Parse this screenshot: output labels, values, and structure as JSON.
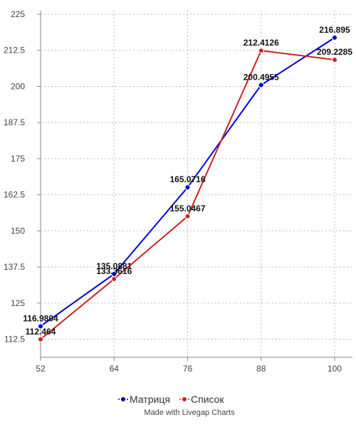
{
  "chart_data": {
    "type": "line",
    "x": [
      52,
      64,
      76,
      88,
      100
    ],
    "x_ticks": [
      "52",
      "64",
      "76",
      "88",
      "100"
    ],
    "y_ticks": [
      "112.5",
      "125",
      "137.5",
      "150",
      "162.5",
      "175",
      "187.5",
      "200",
      "212.5",
      "225"
    ],
    "ylim": [
      106.25,
      225
    ],
    "xlim": [
      52,
      100
    ],
    "grid": "horizontal and vertical dotted",
    "legend_position": "bottom",
    "series": [
      {
        "name": "Матриця",
        "color": "#0000dd",
        "values": [
          116.9804,
          135.0881,
          165.0716,
          200.4955,
          216.895
        ],
        "labels": [
          "116.9804",
          "135.0881",
          "165.0716",
          "200.4955",
          "216.895"
        ]
      },
      {
        "name": "Список",
        "color": "#cc2222",
        "values": [
          112.464,
          133.3616,
          155.0467,
          212.4126,
          209.2285
        ],
        "labels": [
          "112.464",
          "133.3616",
          "155.0467",
          "212.4126",
          "209.2285"
        ]
      }
    ]
  },
  "legend": {
    "items": [
      "Матриця",
      "Список"
    ]
  },
  "credit": "Made with Livegap Charts"
}
